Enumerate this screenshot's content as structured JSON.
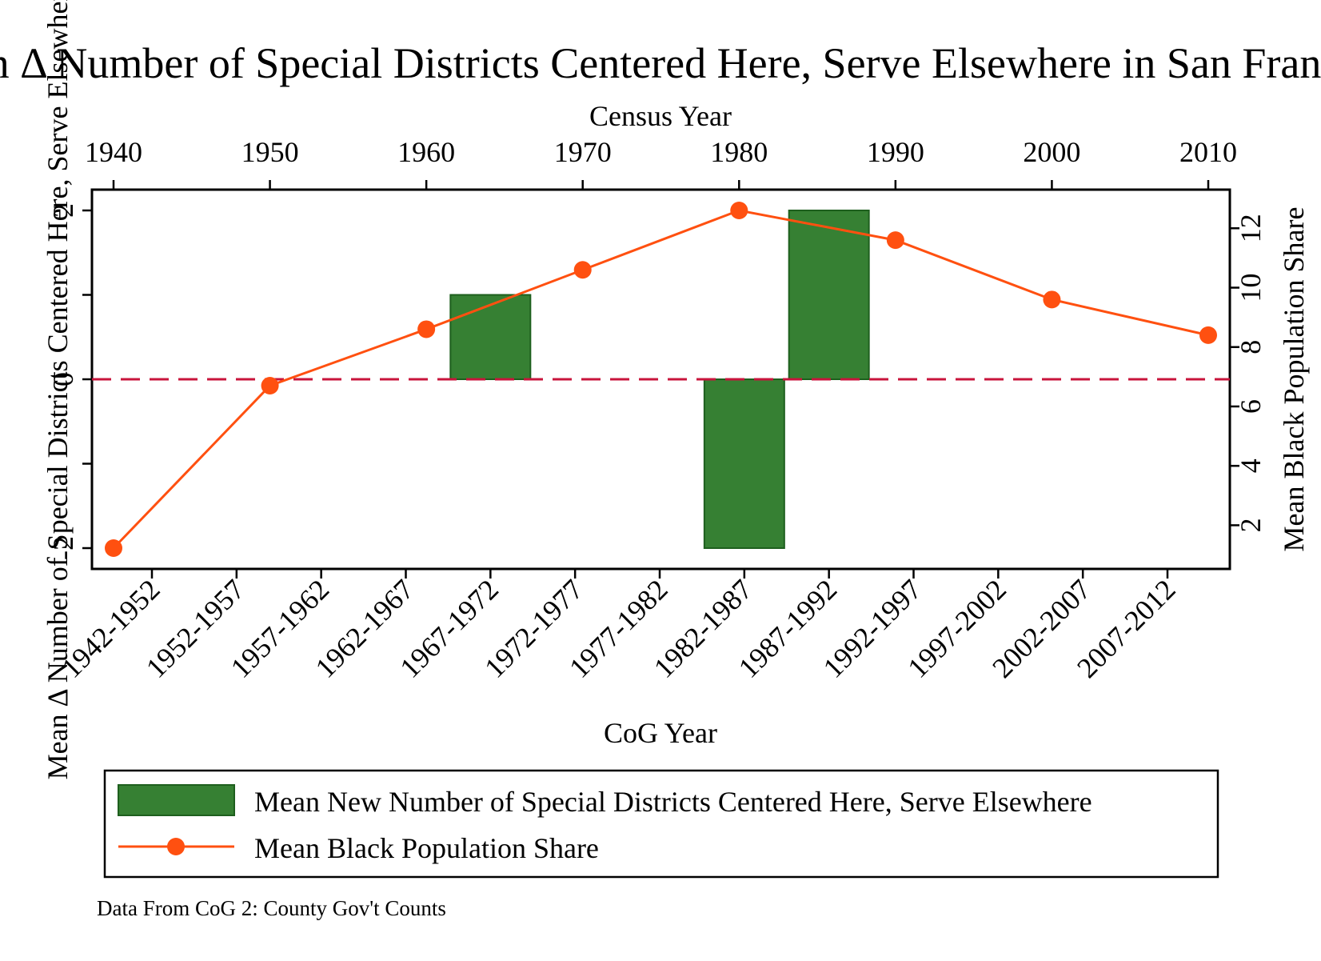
{
  "chart_data": {
    "type": "bar",
    "title": "Mean Δ Number of Special Districts Centered Here, Serve Elsewhere in San Francisco",
    "note": "Data From CoG 2: County Gov't Counts",
    "bottom_axis": {
      "label": "CoG Year",
      "categories": [
        "1942-1952",
        "1952-1957",
        "1957-1962",
        "1962-1967",
        "1967-1972",
        "1972-1977",
        "1977-1982",
        "1982-1987",
        "1987-1992",
        "1992-1997",
        "1997-2002",
        "2002-2007",
        "2007-2012"
      ]
    },
    "top_axis": {
      "label": "Census Year",
      "ticks": [
        1940,
        1950,
        1960,
        1970,
        1980,
        1990,
        2000,
        2010
      ],
      "range": [
        1940,
        2010
      ]
    },
    "left_axis": {
      "label": "Mean Δ Number of Special Districts Centered Here, Serve Elsewhere",
      "tick_values": [
        -2,
        -1,
        0,
        1,
        2
      ],
      "tick_labels": [
        "-2",
        "",
        "0",
        "",
        "2"
      ],
      "range": [
        -2,
        2
      ]
    },
    "right_axis": {
      "label": "Mean Black Population Share",
      "ticks": [
        2,
        4,
        6,
        8,
        10,
        12
      ],
      "range": [
        1.23,
        12.6
      ]
    },
    "reference_line": {
      "y": 0,
      "style": "dashed",
      "color": "#c8143c"
    },
    "series": [
      {
        "name": "Mean New Number of Special Districts Centered Here, Serve Elsewhere",
        "type": "bar",
        "color": "#368033",
        "values": [
          0,
          0,
          0,
          0,
          1,
          0,
          0,
          -2,
          2,
          0,
          0,
          0,
          0
        ]
      },
      {
        "name": "Mean Black Population Share",
        "type": "line",
        "color": "#ff5010",
        "x": [
          1940,
          1950,
          1960,
          1970,
          1980,
          1990,
          2000,
          2010
        ],
        "values": [
          1.23,
          6.7,
          8.6,
          10.6,
          12.6,
          11.6,
          9.6,
          8.4
        ]
      }
    ],
    "legend": {
      "position": "bottom"
    }
  }
}
